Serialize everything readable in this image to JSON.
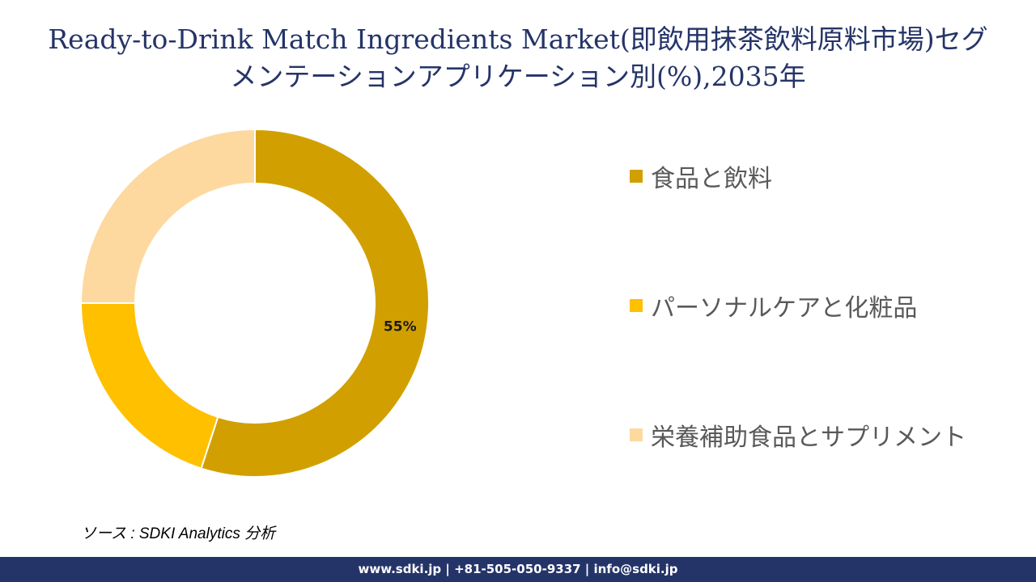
{
  "title_lines": [
    "Ready-to-Drink Match Ingredients Market(即飲用抹茶飲料原料市場)セグ",
    "メンテーションアプリケーション別(%),2035年"
  ],
  "chart_data": {
    "type": "pie",
    "title": "Ready-to-Drink Match Ingredients Market(即飲用抹茶飲料原料市場)セグメンテーションアプリケーション別(%),2035年",
    "categories": [
      "食品と飲料",
      "パーソナルケアと化粧品",
      "栄養補助食品とサプリメント"
    ],
    "values": [
      55,
      20,
      25
    ],
    "data_labels": [
      "55%",
      "",
      ""
    ],
    "colors": [
      "#D1A000",
      "#FFC000",
      "#FDD9A0"
    ],
    "donut": true,
    "legend_position": "right"
  },
  "source": "ソース : SDKI Analytics 分析",
  "footer": "www.sdki.jp | +81-505-050-9337 | info@sdki.jp"
}
